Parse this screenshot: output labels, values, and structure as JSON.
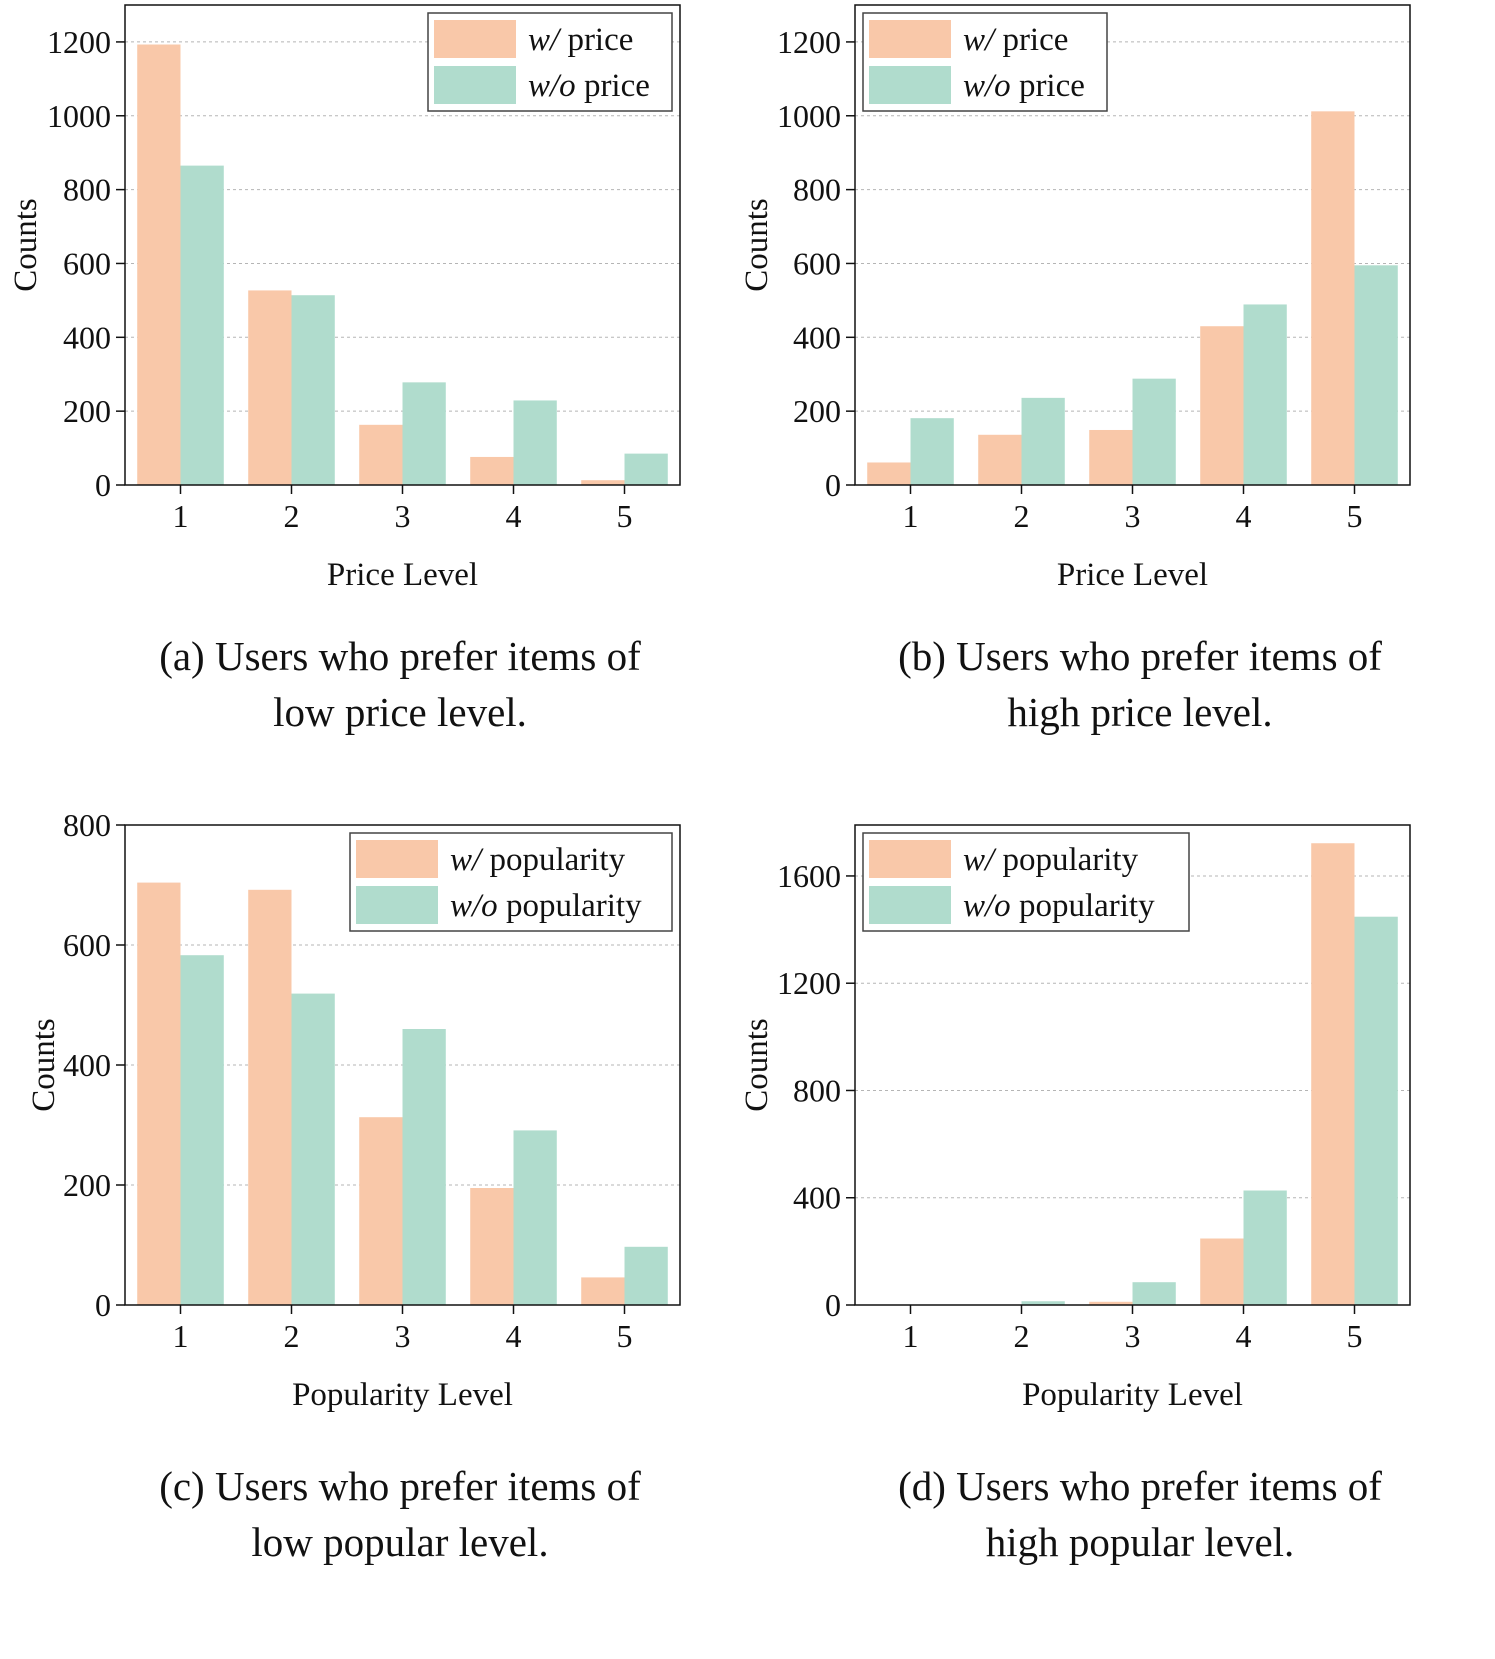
{
  "colors": {
    "with": "#f9c8a9",
    "without": "#b0dccd"
  },
  "chart_data": [
    {
      "type": "bar",
      "categories": [
        "1",
        "2",
        "3",
        "4",
        "5"
      ],
      "series": [
        {
          "name": "w/ price",
          "name_prefix": "w/",
          "name_suffix": " price",
          "values": [
            1193,
            527,
            163,
            76,
            13
          ]
        },
        {
          "name": "w/o price",
          "name_prefix": "w/o",
          "name_suffix": " price",
          "values": [
            865,
            514,
            278,
            229,
            85
          ]
        }
      ],
      "xlabel": "Price Level",
      "ylabel": "Counts",
      "ylim": [
        0,
        1300
      ],
      "yticks": [
        0,
        200,
        400,
        600,
        800,
        1000,
        1200
      ],
      "legend": "top-right",
      "grid": "y-dashed",
      "caption": [
        "(a) Users who prefer items of",
        "low price level."
      ]
    },
    {
      "type": "bar",
      "categories": [
        "1",
        "2",
        "3",
        "4",
        "5"
      ],
      "series": [
        {
          "name": "w/ price",
          "name_prefix": "w/",
          "name_suffix": " price",
          "values": [
            61,
            136,
            149,
            430,
            1012
          ]
        },
        {
          "name": "w/o price",
          "name_prefix": "w/o",
          "name_suffix": " price",
          "values": [
            181,
            236,
            288,
            489,
            595
          ]
        }
      ],
      "xlabel": "Price Level",
      "ylabel": "Counts",
      "ylim": [
        0,
        1300
      ],
      "yticks": [
        0,
        200,
        400,
        600,
        800,
        1000,
        1200
      ],
      "legend": "top-left",
      "grid": "y-dashed",
      "caption": [
        "(b) Users who prefer items of",
        "high price level."
      ]
    },
    {
      "type": "bar",
      "categories": [
        "1",
        "2",
        "3",
        "4",
        "5"
      ],
      "series": [
        {
          "name": "w/ popularity",
          "name_prefix": "w/",
          "name_suffix": " popularity",
          "values": [
            704,
            692,
            313,
            195,
            46
          ]
        },
        {
          "name": "w/o popularity",
          "name_prefix": "w/o",
          "name_suffix": " popularity",
          "values": [
            583,
            519,
            460,
            291,
            97
          ]
        }
      ],
      "xlabel": "Popularity Level",
      "ylabel": "Counts",
      "ylim": [
        0,
        800
      ],
      "yticks": [
        0,
        200,
        400,
        600,
        800
      ],
      "legend": "top-right",
      "grid": "y-dashed",
      "caption": [
        "(c) Users who prefer items of",
        "low popular level."
      ]
    },
    {
      "type": "bar",
      "categories": [
        "1",
        "2",
        "3",
        "4",
        "5"
      ],
      "series": [
        {
          "name": "w/ popularity",
          "name_prefix": "w/",
          "name_suffix": " popularity",
          "values": [
            0,
            0,
            12,
            248,
            1722
          ]
        },
        {
          "name": "w/o popularity",
          "name_prefix": "w/o",
          "name_suffix": " popularity",
          "values": [
            0,
            14,
            85,
            427,
            1448
          ]
        }
      ],
      "xlabel": "Popularity Level",
      "ylabel": "Counts",
      "ylim": [
        0,
        1790
      ],
      "yticks": [
        0,
        400,
        800,
        1200,
        1600
      ],
      "legend": "top-left",
      "grid": "y-dashed",
      "caption": [
        "(d) Users who prefer items of",
        "high popular level."
      ]
    }
  ]
}
